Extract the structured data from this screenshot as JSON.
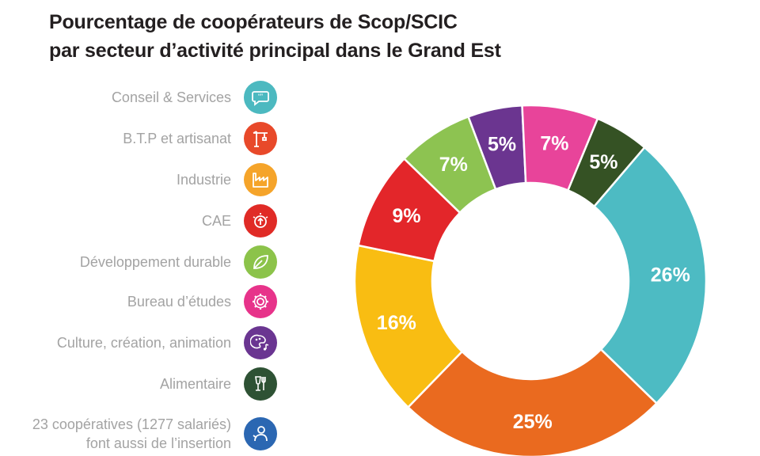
{
  "title": {
    "line1": "Pourcentage de coopérateurs de Scop/SCIC",
    "line2": "par secteur d’activité principal dans le Grand Est"
  },
  "legend": [
    {
      "label": "Conseil & Services",
      "icon": "speech-bubble-icon",
      "color": "#4cb9c0"
    },
    {
      "label": "B.T.P et artisanat",
      "icon": "crane-icon",
      "color": "#e8492a"
    },
    {
      "label": "Industrie",
      "icon": "factory-icon",
      "color": "#f5a42a"
    },
    {
      "label": "CAE",
      "icon": "sun-arrow-icon",
      "color": "#e02b26"
    },
    {
      "label": "Développement durable",
      "icon": "leaf-icon",
      "color": "#8cc34a"
    },
    {
      "label": "Bureau d’études",
      "icon": "gear-icon",
      "color": "#e7338a"
    },
    {
      "label": "Culture, création, animation",
      "icon": "palette-music-icon",
      "color": "#6a3591"
    },
    {
      "label": "Alimentaire",
      "icon": "glass-fork-icon",
      "color": "#2e5234"
    },
    {
      "label": "23 coopératives (1277 salariés)",
      "label2": "font aussi de l’insertion",
      "icon": "person-icon",
      "color": "#2b67b2"
    }
  ],
  "chart_data": {
    "type": "pie",
    "donut": true,
    "slices": [
      {
        "label": "Conseil & Services",
        "value": 26,
        "text": "26%",
        "color": "#4dbbc3"
      },
      {
        "label": "B.T.P et artisanat",
        "value": 25,
        "text": "25%",
        "color": "#ea6a1f"
      },
      {
        "label": "Industrie",
        "value": 16,
        "text": "16%",
        "color": "#f9bd12"
      },
      {
        "label": "CAE",
        "value": 9,
        "text": "9%",
        "color": "#e3262a"
      },
      {
        "label": "Développement durable",
        "value": 7,
        "text": "7%",
        "color": "#8dc351"
      },
      {
        "label": "Culture, création, animation",
        "value": 5,
        "text": "5%",
        "color": "#6b3590"
      },
      {
        "label": "Bureau d’études",
        "value": 7,
        "text": "7%",
        "color": "#e8449a"
      },
      {
        "label": "Alimentaire",
        "value": 5,
        "text": "5%",
        "color": "#355224"
      }
    ]
  }
}
